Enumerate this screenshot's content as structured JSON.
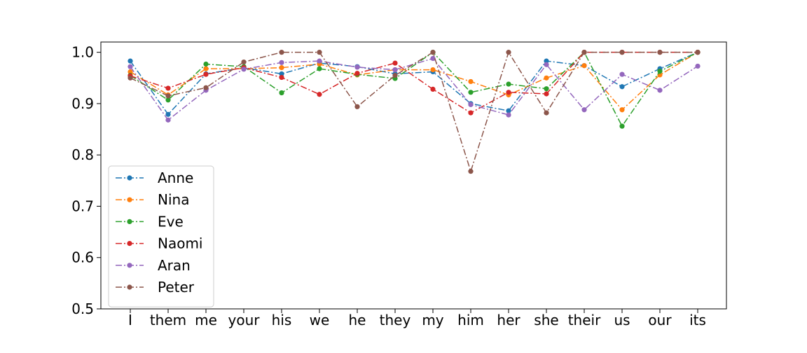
{
  "chart_data": {
    "type": "line",
    "title": "",
    "xlabel": "",
    "ylabel": "",
    "categories": [
      "I",
      "them",
      "me",
      "your",
      "his",
      "we",
      "he",
      "they",
      "my",
      "him",
      "her",
      "she",
      "their",
      "us",
      "our",
      "its"
    ],
    "ylim": [
      0.5,
      1.02
    ],
    "yticks": [
      0.5,
      0.6,
      0.7,
      0.8,
      0.9,
      1.0
    ],
    "ytick_labels": [
      "0.5",
      "0.6",
      "0.7",
      "0.8",
      "0.9",
      "1.0"
    ],
    "grid": false,
    "legend": "lower-left",
    "line_style": "dash-dot",
    "marker": "circle",
    "series": [
      {
        "name": "Anne",
        "color": "#1f77b4",
        "values": [
          0.983,
          0.879,
          0.958,
          0.97,
          0.958,
          0.979,
          0.972,
          0.958,
          0.962,
          0.9,
          0.886,
          0.983,
          0.974,
          0.933,
          0.968,
          1.0
        ]
      },
      {
        "name": "Nina",
        "color": "#ff7f0e",
        "values": [
          0.962,
          0.917,
          0.968,
          0.968,
          0.97,
          0.977,
          0.956,
          0.966,
          0.966,
          0.943,
          0.917,
          0.95,
          0.974,
          0.888,
          0.956,
          1.0
        ]
      },
      {
        "name": "Eve",
        "color": "#2ca02c",
        "values": [
          0.955,
          0.907,
          0.977,
          0.972,
          0.921,
          0.968,
          0.957,
          0.949,
          1.0,
          0.922,
          0.938,
          0.929,
          1.0,
          0.856,
          0.963,
          1.0
        ]
      },
      {
        "name": "Naomi",
        "color": "#d62728",
        "values": [
          0.954,
          0.93,
          0.957,
          0.97,
          0.951,
          0.918,
          0.959,
          0.979,
          0.928,
          0.882,
          0.922,
          0.919,
          1.0,
          1.0,
          1.0,
          1.0
        ]
      },
      {
        "name": "Aran",
        "color": "#9467bd",
        "values": [
          0.972,
          0.868,
          0.926,
          0.967,
          0.98,
          0.983,
          0.971,
          0.966,
          0.988,
          0.898,
          0.878,
          0.976,
          0.888,
          0.957,
          0.926,
          0.973
        ]
      },
      {
        "name": "Peter",
        "color": "#8c564b",
        "values": [
          0.95,
          0.915,
          0.931,
          0.981,
          1.0,
          1.0,
          0.894,
          0.955,
          1.0,
          0.768,
          1.0,
          0.882,
          1.0,
          1.0,
          1.0,
          1.0
        ]
      }
    ]
  }
}
